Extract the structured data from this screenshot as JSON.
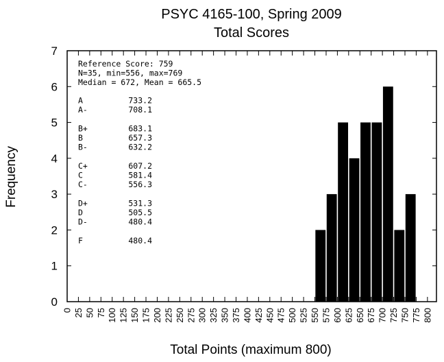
{
  "chart_data": {
    "type": "bar",
    "title": [
      "PSYC 4165-100, Spring 2009",
      "Total Scores"
    ],
    "xlabel": "Total Points (maximum 800)",
    "ylabel": "Frequency",
    "xlim": [
      0,
      820
    ],
    "ylim": [
      0,
      7
    ],
    "bin_width": 25,
    "x_ticks": [
      0,
      25,
      50,
      75,
      100,
      125,
      150,
      175,
      200,
      225,
      250,
      275,
      300,
      325,
      350,
      375,
      400,
      425,
      450,
      475,
      500,
      525,
      550,
      575,
      600,
      625,
      650,
      675,
      700,
      725,
      750,
      775,
      800
    ],
    "y_ticks": [
      0,
      1,
      2,
      3,
      4,
      5,
      6,
      7
    ],
    "bars": [
      {
        "x": 550,
        "value": 2
      },
      {
        "x": 575,
        "value": 3
      },
      {
        "x": 600,
        "value": 5
      },
      {
        "x": 625,
        "value": 4
      },
      {
        "x": 650,
        "value": 5
      },
      {
        "x": 675,
        "value": 5
      },
      {
        "x": 700,
        "value": 6
      },
      {
        "x": 725,
        "value": 2
      },
      {
        "x": 750,
        "value": 3
      }
    ],
    "bar_color": "#000000",
    "grid": false,
    "annotations": {
      "summary": [
        "Reference Score: 759",
        "N=35, min=556, max=769",
        "Median = 672, Mean = 665.5"
      ],
      "grades": [
        [
          {
            "grade": "A",
            "cutoff": "733.2"
          },
          {
            "grade": "A-",
            "cutoff": "708.1"
          }
        ],
        [
          {
            "grade": "B+",
            "cutoff": "683.1"
          },
          {
            "grade": "B",
            "cutoff": "657.3"
          },
          {
            "grade": "B-",
            "cutoff": "632.2"
          }
        ],
        [
          {
            "grade": "C+",
            "cutoff": "607.2"
          },
          {
            "grade": "C",
            "cutoff": "581.4"
          },
          {
            "grade": "C-",
            "cutoff": "556.3"
          }
        ],
        [
          {
            "grade": "D+",
            "cutoff": "531.3"
          },
          {
            "grade": "D",
            "cutoff": "505.5"
          },
          {
            "grade": "D-",
            "cutoff": "480.4"
          }
        ],
        [
          {
            "grade": "F",
            "cutoff": "480.4"
          }
        ]
      ]
    }
  }
}
